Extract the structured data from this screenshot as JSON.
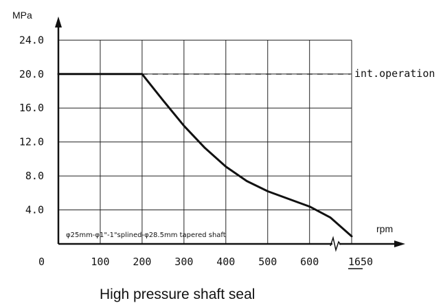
{
  "chart_data": {
    "type": "line",
    "title": "High pressure shaft seal",
    "xlabel": "rpm",
    "ylabel": "MPa",
    "x_ticks": [
      "0",
      "100",
      "200",
      "300",
      "400",
      "500",
      "600",
      "1650"
    ],
    "y_ticks": [
      "4.0",
      "8.0",
      "12.0",
      "16.0",
      "20.0",
      "24.0"
    ],
    "xlim": [
      0,
      1650
    ],
    "ylim": [
      0,
      24
    ],
    "axis_break": "between 600 and 1650",
    "grid": true,
    "series": [
      {
        "x": [
          0,
          200,
          250,
          300,
          350,
          400,
          450,
          500,
          550,
          600,
          650,
          1650
        ],
        "y": [
          20,
          20,
          16.9,
          13.9,
          11.3,
          9.1,
          7.4,
          6.2,
          5.3,
          4.4,
          3.1,
          0.9
        ]
      }
    ],
    "reference_line": {
      "y": 20,
      "style": "dashed",
      "label": "int.operation"
    },
    "note": "φ25mm-φ1\"-1\"splined-φ28.5mm tapered shaft"
  }
}
